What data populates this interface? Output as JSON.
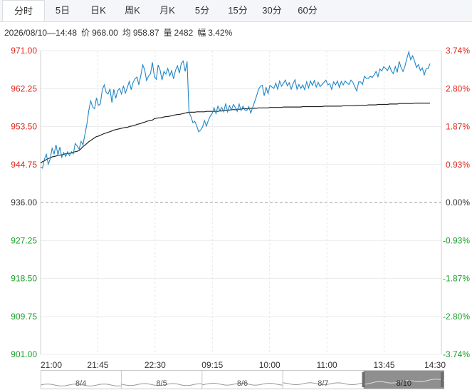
{
  "tabs": [
    "分时",
    "5日",
    "日K",
    "周K",
    "月K",
    "5分",
    "15分",
    "30分",
    "60分"
  ],
  "active_tab": 0,
  "info": {
    "datetime": "2026/08/10—14:48",
    "price_label": "价",
    "price": "968.00",
    "avg_label": "均",
    "avg": "958.87",
    "volume_label": "量",
    "volume": "2482",
    "amp_label": "幅",
    "amp": "3.42%"
  },
  "colors": {
    "up": "#e0261b",
    "down": "#1a9f28",
    "neutral": "#333333",
    "price_line": "#1f86c7",
    "avg_line": "#222222"
  },
  "chart_data": {
    "type": "line",
    "ylim": [
      901.0,
      971.0
    ],
    "base_price": 936.0,
    "y_ticks_left": [
      "971.00",
      "962.25",
      "953.50",
      "944.75",
      "936.00",
      "927.25",
      "918.50",
      "909.75",
      "901.00"
    ],
    "y_ticks_right": [
      "3.74%",
      "2.80%",
      "1.87%",
      "0.93%",
      "0.00%",
      "-0.93%",
      "-1.87%",
      "-2.80%",
      "-3.74%"
    ],
    "x_ticks": [
      "21:00",
      "21:45",
      "22:30",
      "09:15",
      "10:00",
      "11:00",
      "13:45",
      "14:30"
    ],
    "series": [
      {
        "values": [
          944.2,
          943.9,
          946.0,
          947.1,
          944.8,
          946.0,
          948.5,
          947.2,
          949.3,
          947.0,
          948.8,
          946.4,
          947.5,
          946.6,
          947.7,
          946.8,
          947.7,
          947.2,
          949.6,
          949.0,
          948.3,
          950.1,
          949.3,
          951.7,
          954.0,
          957.2,
          959.4,
          958.0,
          957.6,
          960.1,
          958.4,
          958.7,
          962.0,
          963.1,
          961.4,
          961.0,
          962.2,
          959.0,
          962.1,
          960.0,
          961.8,
          962.3,
          961.0,
          962.9,
          961.2,
          962.5,
          963.9,
          962.0,
          963.7,
          964.5,
          964.9,
          963.1,
          965.3,
          967.7,
          966.6,
          964.1,
          965.1,
          965.7,
          968.3,
          965.0,
          964.4,
          967.7,
          966.5,
          964.2,
          966.2,
          965.6,
          966.9,
          965.2,
          966.4,
          964.5,
          966.5,
          967.5,
          965.8,
          968.1,
          968.6,
          966.2,
          968.5,
          956.7,
          955.8,
          954.4,
          954.7,
          953.7,
          952.3,
          952.7,
          953.4,
          954.9,
          953.6,
          954.9,
          955.9,
          956.5,
          957.8,
          956.5,
          958.2,
          957.2,
          957.9,
          956.9,
          958.8,
          956.9,
          958.3,
          957.3,
          958.6,
          957.9,
          957.0,
          958.7,
          957.2,
          958.2,
          957.3,
          957.2,
          958.1,
          956.6,
          957.9,
          959.2,
          960.5,
          962.0,
          962.8,
          963.0,
          960.6,
          962.5,
          961.1,
          963.0,
          962.6,
          962.3,
          963.5,
          962.1,
          964.0,
          962.8,
          963.5,
          964.2,
          962.9,
          963.6,
          962.1,
          963.4,
          964.3,
          962.1,
          963.2,
          962.3,
          963.1,
          962.0,
          963.8,
          962.4,
          964.0,
          963.0,
          964.1,
          962.6,
          963.7,
          962.7,
          963.2,
          963.7,
          964.2,
          963.1,
          963.4,
          962.1,
          963.8,
          963.1,
          964.0,
          962.5,
          963.9,
          963.1,
          964.0,
          963.5,
          963.2,
          964.2,
          963.7,
          962.7,
          961.7,
          963.8,
          963.8,
          963.2,
          965.1,
          964.6,
          964.6,
          965.1,
          964.8,
          965.4,
          966.2,
          965.0,
          966.8,
          966.3,
          967.3,
          966.9,
          966.4,
          967.5,
          966.3,
          965.7,
          967.3,
          966.0,
          968.5,
          967.1,
          966.2,
          967.4,
          969.2,
          970.7,
          968.9,
          969.8,
          968.6,
          967.1,
          967.8,
          966.4,
          967.0,
          965.4,
          966.8,
          966.9,
          968.0
        ]
      },
      {
        "values": [
          945.1,
          945.4,
          945.6,
          945.9,
          946.1,
          946.3,
          946.5,
          946.6,
          946.7,
          946.9,
          946.9,
          947.0,
          947.1,
          947.2,
          947.3,
          947.3,
          947.4,
          947.6,
          947.7,
          947.8,
          948.0,
          948.4,
          948.9,
          949.2,
          949.6,
          950.0,
          950.3,
          950.6,
          950.9,
          951.2,
          951.3,
          951.5,
          951.7,
          951.9,
          952.0,
          952.2,
          952.3,
          952.5,
          952.7,
          952.8,
          952.9,
          953.0,
          953.1,
          953.2,
          953.3,
          953.3,
          953.5,
          953.6,
          953.7,
          953.8,
          954.0,
          954.1,
          954.2,
          954.4,
          954.5,
          954.7,
          954.8,
          954.9,
          955.0,
          955.3,
          955.4,
          955.5,
          955.5,
          955.6,
          955.7,
          955.8,
          955.8,
          955.9,
          956.0,
          956.1,
          956.2,
          956.3,
          956.3,
          956.4,
          956.5,
          956.6,
          956.7,
          956.8,
          956.8,
          956.8,
          956.8,
          956.9,
          956.9,
          956.9,
          956.9,
          956.9,
          957.0,
          957.0,
          957.0,
          957.0,
          957.0,
          957.0,
          957.0,
          957.1,
          957.1,
          957.2,
          957.2,
          957.3,
          957.3,
          957.4,
          957.4,
          957.4,
          957.5,
          957.5,
          957.5,
          957.6,
          957.6,
          957.6,
          957.6,
          957.7,
          957.7,
          957.7,
          957.7,
          957.8,
          957.8,
          957.8,
          957.8,
          957.8,
          957.8,
          957.9,
          957.9,
          957.9,
          957.9,
          957.9,
          957.9,
          957.9,
          958.0,
          958.0,
          958.0,
          958.0,
          958.0,
          958.0,
          958.0,
          958.0,
          958.0,
          958.0,
          958.1,
          958.1,
          958.1,
          958.1,
          958.1,
          958.1,
          958.1,
          958.1,
          958.1,
          958.1,
          958.1,
          958.2,
          958.2,
          958.2,
          958.2,
          958.2,
          958.2,
          958.2,
          958.2,
          958.2,
          958.2,
          958.3,
          958.3,
          958.3,
          958.3,
          958.3,
          958.3,
          958.3,
          958.4,
          958.4,
          958.4,
          958.4,
          958.4,
          958.4,
          958.5,
          958.5,
          958.5,
          958.5,
          958.5,
          958.6,
          958.6,
          958.6,
          958.6,
          958.6,
          958.6,
          958.7,
          958.7,
          958.7,
          958.7,
          958.7,
          958.8,
          958.8,
          958.8,
          958.8,
          958.8,
          958.8,
          958.8,
          958.8,
          958.9,
          958.9,
          958.9,
          958.9,
          958.9,
          958.9,
          958.9,
          958.9,
          958.9
        ]
      }
    ]
  },
  "navigator": {
    "dates": [
      "8/4",
      "8/5",
      "8/6",
      "8/7",
      "8/10"
    ],
    "selected_index": 4
  }
}
